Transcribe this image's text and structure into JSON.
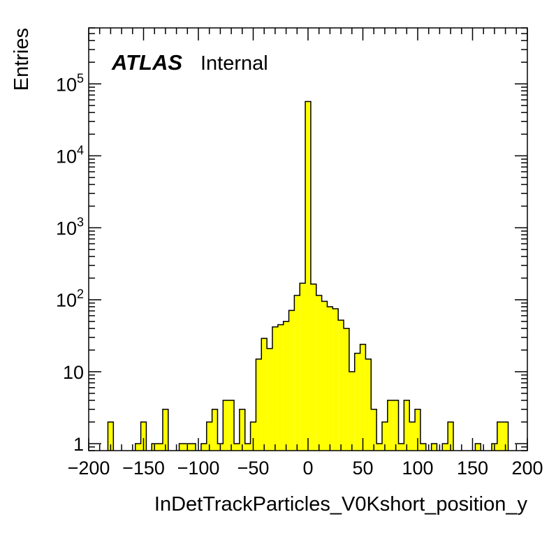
{
  "label": {
    "atlas": "ATLAS",
    "status": "Internal"
  },
  "chart_data": {
    "type": "histogram",
    "xlabel": "InDetTrackParticles_V0Kshort_position_y",
    "ylabel": "Entries",
    "xlim": [
      -200,
      200
    ],
    "ylim": [
      0.8,
      600000
    ],
    "yscale": "log",
    "bin_width": 5,
    "fill_color": "#ffff00",
    "line_color": "#000000",
    "x_ticks": [
      "−200",
      "−150",
      "−100",
      "−50",
      "0",
      "50",
      "100",
      "150",
      "200"
    ],
    "x_tick_values": [
      -200,
      -150,
      -100,
      -50,
      0,
      50,
      100,
      150,
      200
    ],
    "y_ticks": [
      {
        "value": 1,
        "base": "1",
        "exp": ""
      },
      {
        "value": 10,
        "base": "10",
        "exp": ""
      },
      {
        "value": 100,
        "base": "10",
        "exp": "2"
      },
      {
        "value": 1000,
        "base": "10",
        "exp": "3"
      },
      {
        "value": 10000,
        "base": "10",
        "exp": "4"
      },
      {
        "value": 100000,
        "base": "10",
        "exp": "5"
      }
    ],
    "bins": [
      {
        "x": -180,
        "y": 2
      },
      {
        "x": -155,
        "y": 1
      },
      {
        "x": -150,
        "y": 2
      },
      {
        "x": -140,
        "y": 1
      },
      {
        "x": -135,
        "y": 1
      },
      {
        "x": -130,
        "y": 3
      },
      {
        "x": -115,
        "y": 1
      },
      {
        "x": -110,
        "y": 1
      },
      {
        "x": -105,
        "y": 1
      },
      {
        "x": -95,
        "y": 1
      },
      {
        "x": -90,
        "y": 2
      },
      {
        "x": -85,
        "y": 3
      },
      {
        "x": -80,
        "y": 1
      },
      {
        "x": -75,
        "y": 4
      },
      {
        "x": -70,
        "y": 4
      },
      {
        "x": -65,
        "y": 1
      },
      {
        "x": -60,
        "y": 3
      },
      {
        "x": -55,
        "y": 1
      },
      {
        "x": -50,
        "y": 2
      },
      {
        "x": -45,
        "y": 15
      },
      {
        "x": -40,
        "y": 29
      },
      {
        "x": -35,
        "y": 21
      },
      {
        "x": -30,
        "y": 42
      },
      {
        "x": -25,
        "y": 45
      },
      {
        "x": -20,
        "y": 50
      },
      {
        "x": -15,
        "y": 71
      },
      {
        "x": -10,
        "y": 115
      },
      {
        "x": -5,
        "y": 170
      },
      {
        "x": -5.0001,
        "y": 0
      },
      {
        "x": 0,
        "y": 57000
      },
      {
        "x": 5,
        "y": 165
      },
      {
        "x": 10,
        "y": 115
      },
      {
        "x": 15,
        "y": 95
      },
      {
        "x": 20,
        "y": 80
      },
      {
        "x": 25,
        "y": 75
      },
      {
        "x": 30,
        "y": 52
      },
      {
        "x": 35,
        "y": 40
      },
      {
        "x": 40,
        "y": 10
      },
      {
        "x": 45,
        "y": 18
      },
      {
        "x": 50,
        "y": 24
      },
      {
        "x": 55,
        "y": 15
      },
      {
        "x": 60,
        "y": 3
      },
      {
        "x": 65,
        "y": 1
      },
      {
        "x": 70,
        "y": 2
      },
      {
        "x": 75,
        "y": 4
      },
      {
        "x": 80,
        "y": 4
      },
      {
        "x": 85,
        "y": 1
      },
      {
        "x": 90,
        "y": 4
      },
      {
        "x": 95,
        "y": 2
      },
      {
        "x": 100,
        "y": 3
      },
      {
        "x": 105,
        "y": 1
      },
      {
        "x": 115,
        "y": 1
      },
      {
        "x": 125,
        "y": 1
      },
      {
        "x": 130,
        "y": 2
      },
      {
        "x": 155,
        "y": 1
      },
      {
        "x": 170,
        "y": 1
      },
      {
        "x": 175,
        "y": 2
      },
      {
        "x": 180,
        "y": 2
      }
    ]
  }
}
